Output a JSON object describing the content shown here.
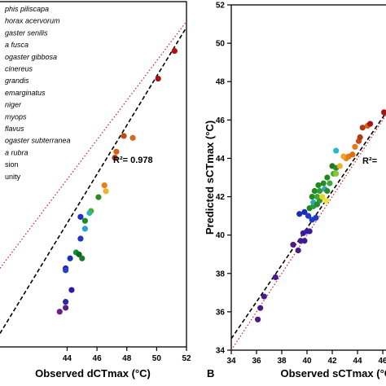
{
  "chart_data": [
    {
      "type": "scatter",
      "xlabel": "Observed dCTmax (°C)",
      "ylabel": "",
      "xlim": [
        39.5,
        52
      ],
      "ylim": [
        35.6,
        53
      ],
      "xticks": [
        "44",
        "46",
        "48",
        "50",
        "52"
      ],
      "xtick_values": [
        44,
        46,
        48,
        50,
        52
      ],
      "r2_label": "R²= 0.978",
      "legend": {
        "placement": "top-left (cropped)",
        "entries": [
          "phis piliscapa",
          "horax acervorum",
          "gaster senilis",
          "a fusca",
          "ogaster gibbosa",
          "cinereus",
          "grandis",
          "emarginatus",
          "niger",
          "myops",
          "flavus",
          "ogaster subterranea",
          "a rubra",
          "sion",
          "unity"
        ]
      },
      "fit_line": {
        "style": "dashed",
        "color": "#000000",
        "from": [
          39.5,
          36.2
        ],
        "to": [
          52,
          51.7
        ]
      },
      "identity_line": {
        "style": "dotted",
        "color": "#d11a1a",
        "from": [
          39.5,
          39.5
        ],
        "to": [
          52,
          52
        ]
      },
      "points": [
        {
          "x": 51.2,
          "y": 50.5,
          "color": "#b01010"
        },
        {
          "x": 50.1,
          "y": 49.1,
          "color": "#a81212"
        },
        {
          "x": 48.4,
          "y": 46.1,
          "color": "#d06a1c"
        },
        {
          "x": 47.8,
          "y": 46.2,
          "color": "#c24a16"
        },
        {
          "x": 47.3,
          "y": 45.4,
          "color": "#d85f10"
        },
        {
          "x": 47.2,
          "y": 45.1,
          "color": "#b23a12"
        },
        {
          "x": 46.5,
          "y": 43.7,
          "color": "#ee7a1a"
        },
        {
          "x": 46.6,
          "y": 43.4,
          "color": "#f0b228"
        },
        {
          "x": 46.1,
          "y": 43.1,
          "color": "#2e8b1e"
        },
        {
          "x": 45.6,
          "y": 42.4,
          "color": "#54a82a"
        },
        {
          "x": 45.5,
          "y": 42.3,
          "color": "#2cb8a8"
        },
        {
          "x": 45.2,
          "y": 41.9,
          "color": "#1e8c1e"
        },
        {
          "x": 44.9,
          "y": 42.1,
          "color": "#1e2fc8"
        },
        {
          "x": 45.2,
          "y": 41.5,
          "color": "#2aa0d8"
        },
        {
          "x": 44.9,
          "y": 41.0,
          "color": "#1e36c8"
        },
        {
          "x": 44.6,
          "y": 40.3,
          "color": "#128a3a"
        },
        {
          "x": 44.8,
          "y": 40.2,
          "color": "#0a6a1a"
        },
        {
          "x": 45.0,
          "y": 40.0,
          "color": "#1a7a2a"
        },
        {
          "x": 44.2,
          "y": 40.0,
          "color": "#1e30c0"
        },
        {
          "x": 43.9,
          "y": 39.5,
          "color": "#1e2ab8"
        },
        {
          "x": 44.3,
          "y": 38.4,
          "color": "#2a1aa8"
        },
        {
          "x": 43.9,
          "y": 37.5,
          "color": "#5a1e8c"
        },
        {
          "x": 43.5,
          "y": 37.3,
          "color": "#6a1e8a"
        },
        {
          "x": 43.9,
          "y": 37.8,
          "color": "#2a2aa8"
        },
        {
          "x": 43.9,
          "y": 39.4,
          "color": "#2a40c8"
        }
      ]
    },
    {
      "type": "scatter",
      "xlabel": "Observed sCTmax (°C)",
      "ylabel": "Predicted sCTmax (°C)",
      "xlim": [
        34,
        46.9
      ],
      "ylim": [
        34,
        52
      ],
      "xticks": [
        "34",
        "36",
        "38",
        "40",
        "42",
        "44",
        "46"
      ],
      "xtick_values": [
        34,
        36,
        38,
        40,
        42,
        44,
        46
      ],
      "yticks": [
        "34",
        "36",
        "38",
        "40",
        "42",
        "44",
        "46",
        "48",
        "50",
        "52"
      ],
      "ytick_values": [
        34,
        36,
        38,
        40,
        42,
        44,
        46,
        48,
        50,
        52
      ],
      "r2_label": "R²=",
      "panel_letter": "B",
      "fit_line": {
        "style": "dashed",
        "color": "#000000",
        "from": [
          34,
          34.6
        ],
        "to": [
          46.9,
          47.0
        ]
      },
      "identity_line": {
        "style": "dotted",
        "color": "#d11a1a",
        "from": [
          34,
          34
        ],
        "to": [
          46.9,
          46.9
        ]
      },
      "points": [
        {
          "x": 36.1,
          "y": 35.6,
          "color": "#4a1a8a"
        },
        {
          "x": 36.3,
          "y": 36.2,
          "color": "#4a1a8a"
        },
        {
          "x": 36.6,
          "y": 36.8,
          "color": "#4a1a8a"
        },
        {
          "x": 37.5,
          "y": 37.8,
          "color": "#4a1a8a"
        },
        {
          "x": 38.9,
          "y": 39.5,
          "color": "#4a1a8a"
        },
        {
          "x": 39.3,
          "y": 39.2,
          "color": "#4a1a8a"
        },
        {
          "x": 39.5,
          "y": 39.7,
          "color": "#4a1a8a"
        },
        {
          "x": 39.7,
          "y": 40.1,
          "color": "#3a1aa0"
        },
        {
          "x": 39.8,
          "y": 39.7,
          "color": "#3a1aa0"
        },
        {
          "x": 40.0,
          "y": 40.2,
          "color": "#3a1aa0"
        },
        {
          "x": 40.2,
          "y": 40.2,
          "color": "#3a1aa0"
        },
        {
          "x": 39.4,
          "y": 41.1,
          "color": "#1e2ab8"
        },
        {
          "x": 39.8,
          "y": 41.2,
          "color": "#1e2ab8"
        },
        {
          "x": 40.1,
          "y": 41.0,
          "color": "#1e3ac8"
        },
        {
          "x": 40.4,
          "y": 40.8,
          "color": "#1e3ac8"
        },
        {
          "x": 40.7,
          "y": 40.9,
          "color": "#1e3ac8"
        },
        {
          "x": 40.2,
          "y": 41.4,
          "color": "#1e8a1e"
        },
        {
          "x": 40.5,
          "y": 41.5,
          "color": "#2e9a2e"
        },
        {
          "x": 40.5,
          "y": 41.7,
          "color": "#2aa8b8"
        },
        {
          "x": 40.8,
          "y": 41.6,
          "color": "#2a8a2a"
        },
        {
          "x": 41.0,
          "y": 41.8,
          "color": "#2e9a2e"
        },
        {
          "x": 40.4,
          "y": 42.0,
          "color": "#228a22"
        },
        {
          "x": 40.8,
          "y": 42.0,
          "color": "#3aa83a"
        },
        {
          "x": 41.2,
          "y": 42.0,
          "color": "#e8d22a"
        },
        {
          "x": 41.5,
          "y": 41.8,
          "color": "#f0e040"
        },
        {
          "x": 40.6,
          "y": 42.3,
          "color": "#228a22"
        },
        {
          "x": 41.0,
          "y": 42.3,
          "color": "#2a9a3a"
        },
        {
          "x": 41.4,
          "y": 42.4,
          "color": "#2aa8b8"
        },
        {
          "x": 41.6,
          "y": 42.3,
          "color": "#2a8a2a"
        },
        {
          "x": 40.9,
          "y": 42.6,
          "color": "#1e8a1e"
        },
        {
          "x": 41.3,
          "y": 42.7,
          "color": "#2a8a2a"
        },
        {
          "x": 41.8,
          "y": 42.7,
          "color": "#3aa83a"
        },
        {
          "x": 41.6,
          "y": 43.0,
          "color": "#1e8a1e"
        },
        {
          "x": 42.1,
          "y": 43.2,
          "color": "#4aaa2a"
        },
        {
          "x": 42.3,
          "y": 43.2,
          "color": "#8ac83a"
        },
        {
          "x": 42.0,
          "y": 43.6,
          "color": "#1e7a1e"
        },
        {
          "x": 42.3,
          "y": 43.5,
          "color": "#2a8a2a"
        },
        {
          "x": 42.6,
          "y": 43.6,
          "color": "#f0b028"
        },
        {
          "x": 43.1,
          "y": 44.0,
          "color": "#e8821a"
        },
        {
          "x": 42.9,
          "y": 44.1,
          "color": "#f0a028"
        },
        {
          "x": 43.3,
          "y": 44.1,
          "color": "#e8761a"
        },
        {
          "x": 43.6,
          "y": 44.2,
          "color": "#e06a10"
        },
        {
          "x": 42.3,
          "y": 44.4,
          "color": "#2ab8c8"
        },
        {
          "x": 43.8,
          "y": 44.6,
          "color": "#e8761a"
        },
        {
          "x": 44.1,
          "y": 44.9,
          "color": "#c04a14"
        },
        {
          "x": 44.2,
          "y": 45.1,
          "color": "#b03a12"
        },
        {
          "x": 44.4,
          "y": 45.6,
          "color": "#b03a12"
        },
        {
          "x": 44.8,
          "y": 45.7,
          "color": "#d0601a"
        },
        {
          "x": 45.0,
          "y": 45.8,
          "color": "#a81414"
        },
        {
          "x": 46.1,
          "y": 46.4,
          "color": "#a81212"
        },
        {
          "x": 46.6,
          "y": 46.5,
          "color": "#b01010"
        }
      ]
    }
  ]
}
